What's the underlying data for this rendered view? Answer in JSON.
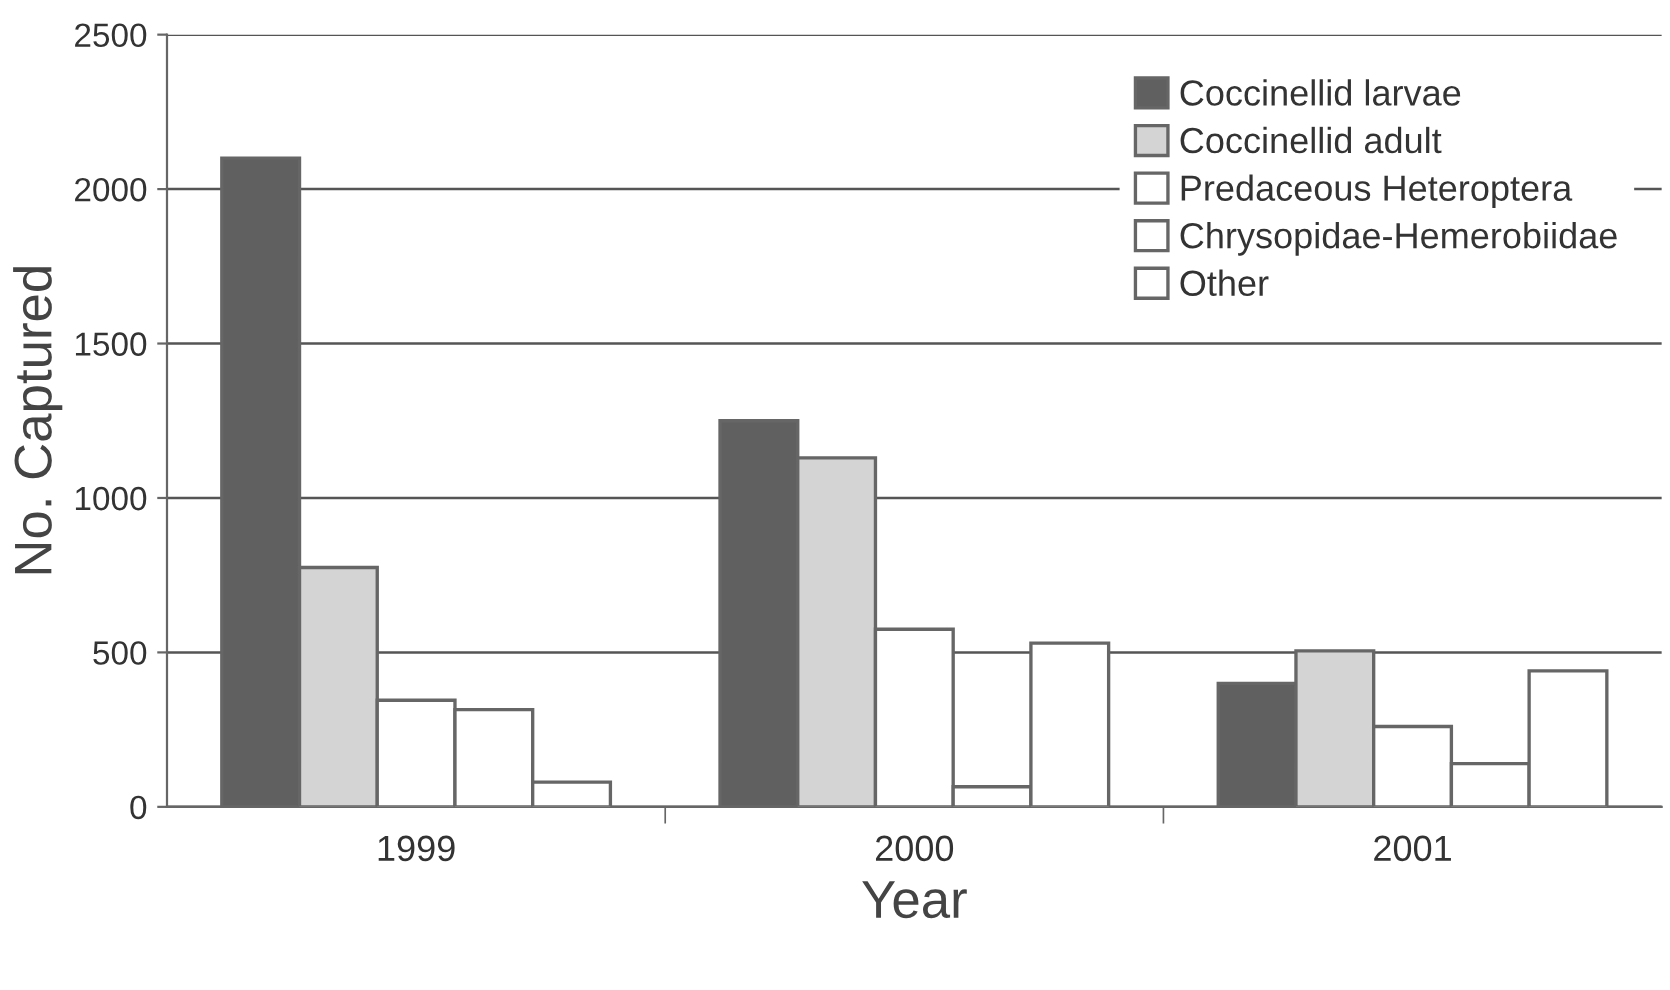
{
  "chart_data": {
    "type": "bar",
    "xlabel": "Year",
    "ylabel": "No. Captured",
    "categories": [
      "1999",
      "2000",
      "2001"
    ],
    "series": [
      {
        "name": "Coccinellid larvae",
        "color": "#606060",
        "values": [
          2100,
          1250,
          400
        ]
      },
      {
        "name": "Coccinellid adult",
        "color": "#d4d4d4",
        "values": [
          775,
          1130,
          505
        ]
      },
      {
        "name": "Predaceous Heteroptera",
        "color": "#ffffff",
        "values": [
          345,
          575,
          260
        ]
      },
      {
        "name": "Chrysopidae-Hemerobiidae",
        "color": "#ffffff",
        "values": [
          315,
          65,
          140
        ]
      },
      {
        "name": "Other",
        "color": "#ffffff",
        "values": [
          80,
          530,
          440
        ]
      }
    ],
    "ylim": [
      0,
      2500
    ],
    "yticks": [
      0,
      500,
      1000,
      1500,
      2000,
      2500
    ],
    "grid": "y",
    "legend": "top right"
  }
}
